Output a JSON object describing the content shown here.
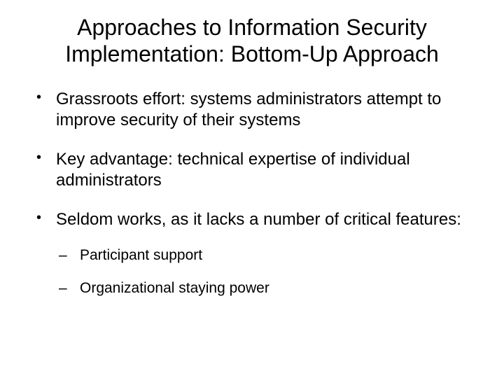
{
  "slide": {
    "title": "Approaches to Information Security Implementation: Bottom-Up Approach",
    "bullets": [
      {
        "text": "Grassroots effort: systems administrators attempt to improve security of their systems",
        "subs": []
      },
      {
        "text": "Key advantage: technical expertise of individual administrators",
        "subs": []
      },
      {
        "text": "Seldom works, as it lacks a number of critical features:",
        "subs": [
          "Participant support",
          "Organizational staying power"
        ]
      }
    ],
    "background_color": "#ffffff",
    "text_color": "#000000",
    "title_fontsize": 32,
    "bullet_fontsize": 24,
    "sub_bullet_fontsize": 21,
    "font_family": "Arial"
  }
}
